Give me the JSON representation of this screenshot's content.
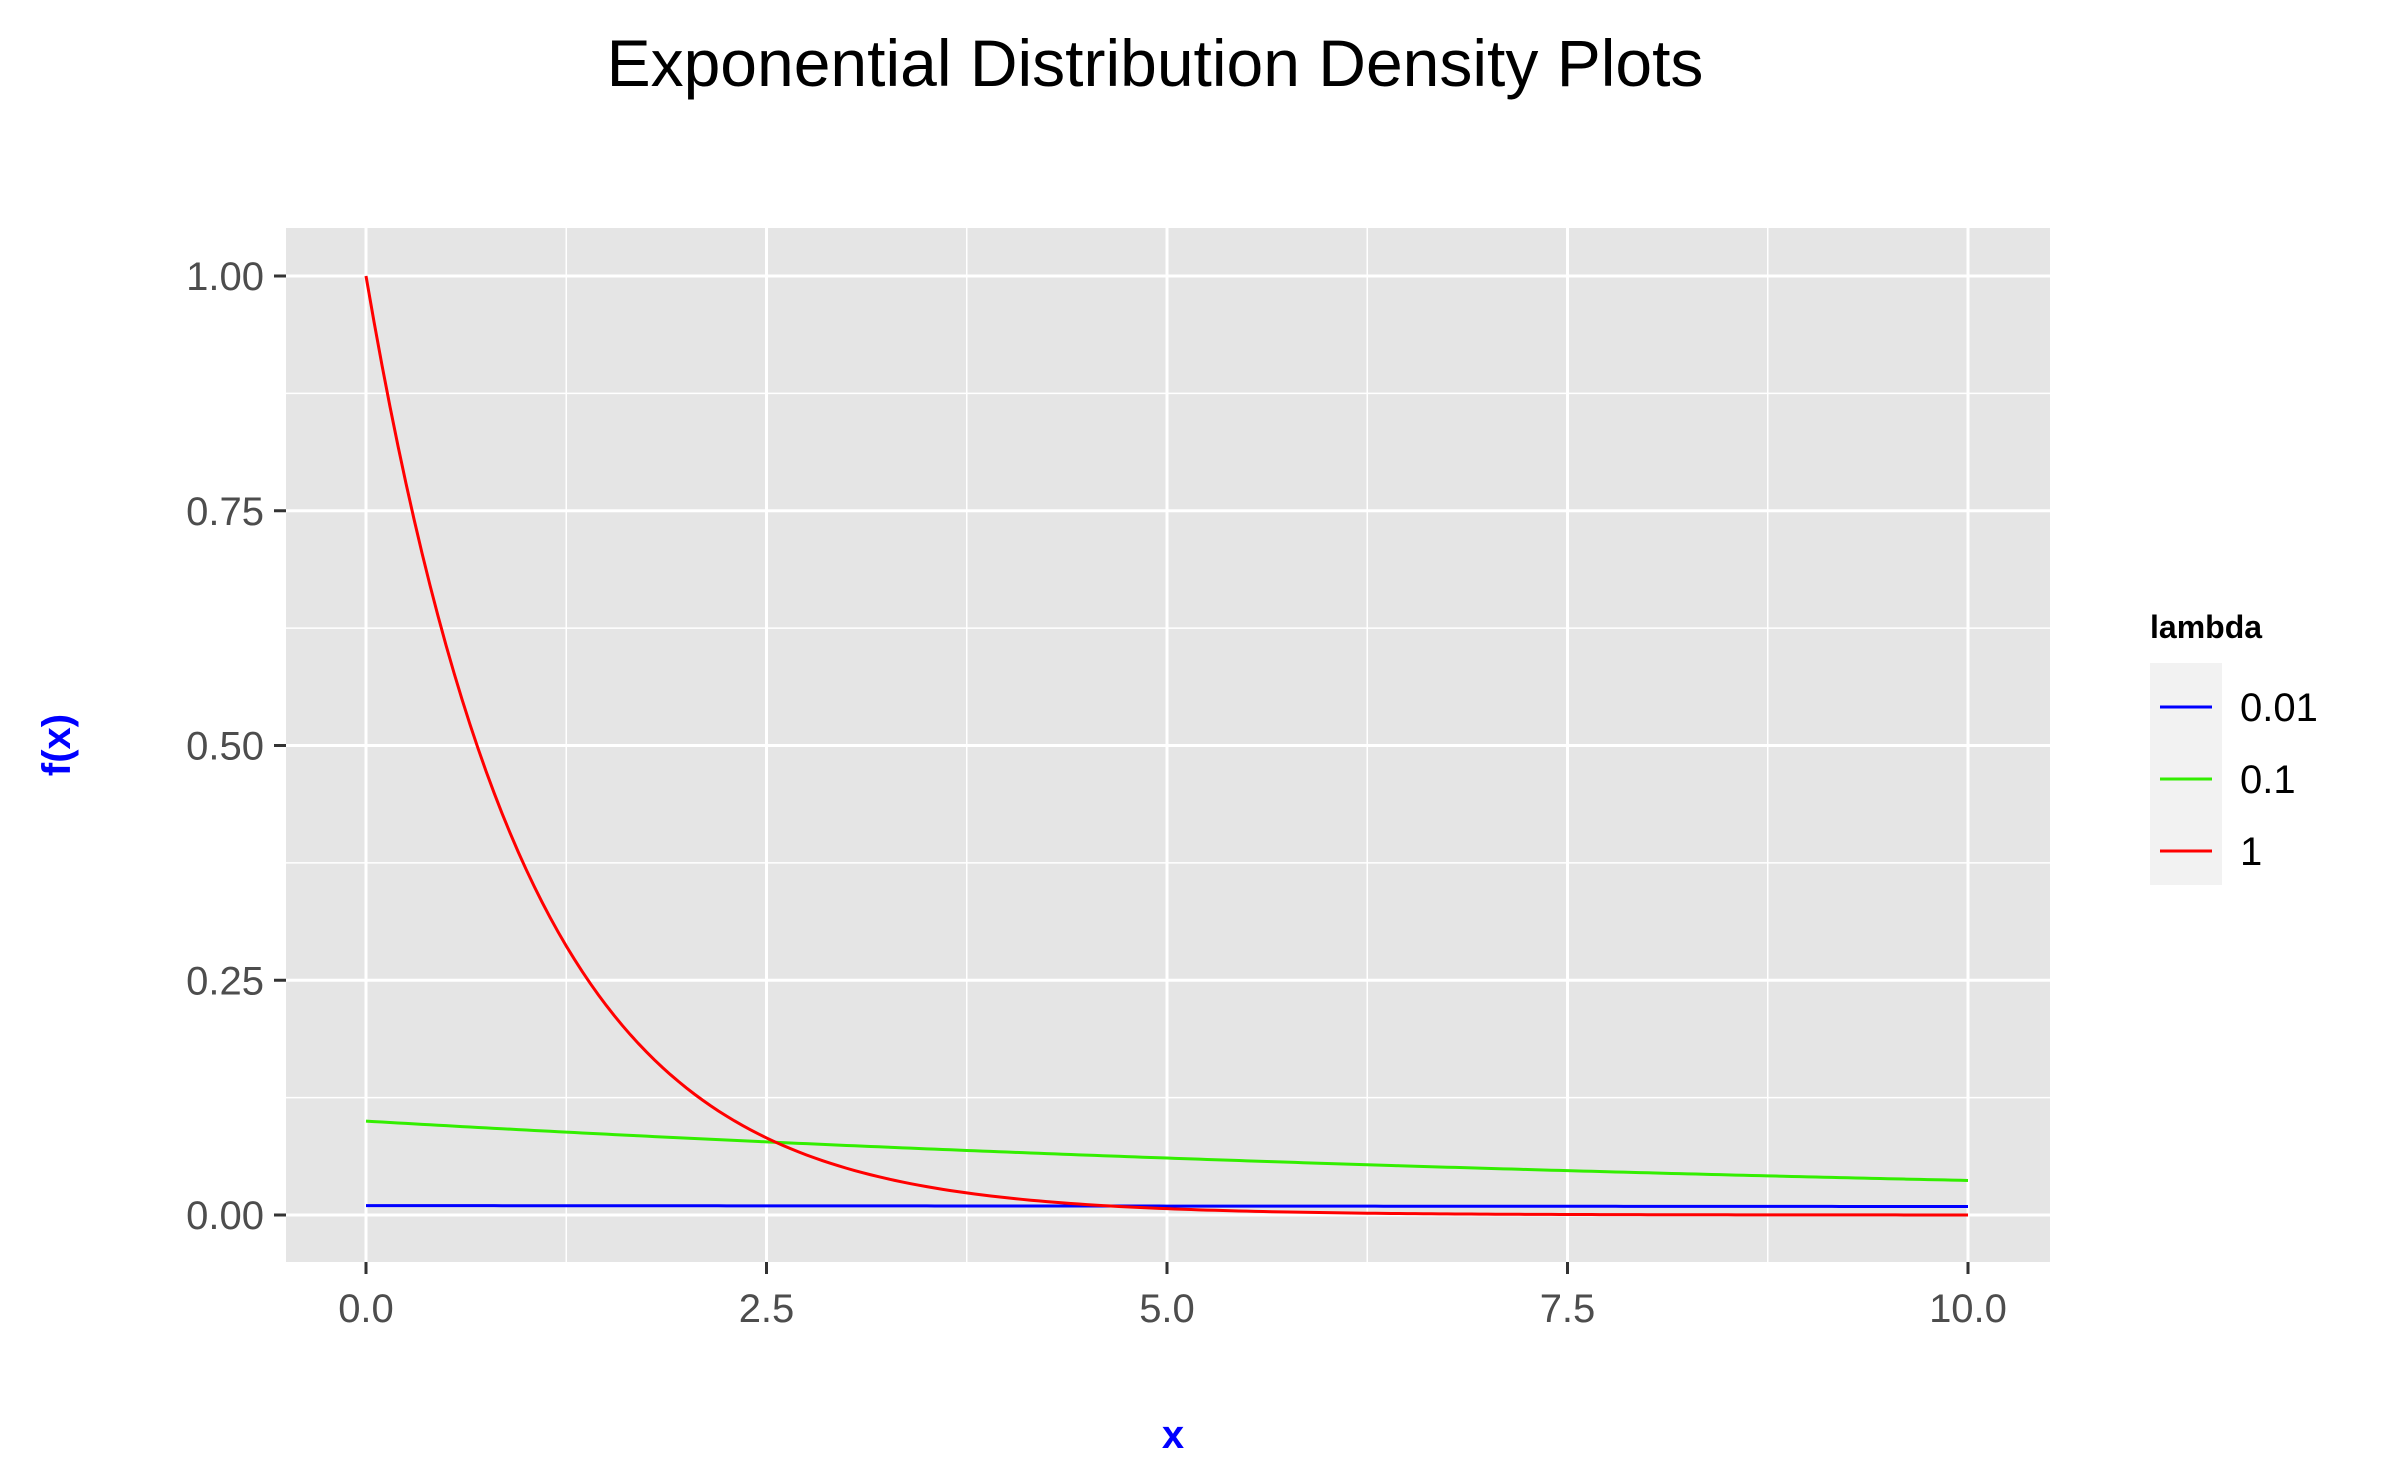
{
  "chart_data": {
    "type": "line",
    "title": "Exponential Distribution Density Plots",
    "xlabel": "x",
    "ylabel": "f(x)",
    "xlim": [
      0,
      10
    ],
    "ylim": [
      0,
      1
    ],
    "x_ticks": [
      "0.0",
      "2.5",
      "5.0",
      "7.5",
      "10.0"
    ],
    "y_ticks": [
      "0.00",
      "0.25",
      "0.50",
      "0.75",
      "1.00"
    ],
    "grid": true,
    "legend": {
      "title": "lambda",
      "position": "right"
    },
    "series": [
      {
        "name": "0.01",
        "lambda": 0.01,
        "color": "#0000ff",
        "x": [
          0,
          1,
          2,
          3,
          4,
          5,
          6,
          7,
          8,
          9,
          10
        ],
        "y": [
          0.01,
          0.0099,
          0.0098,
          0.0097,
          0.0096,
          0.0095,
          0.0094,
          0.0093,
          0.0092,
          0.0091,
          0.009
        ]
      },
      {
        "name": "0.1",
        "lambda": 0.1,
        "color": "#33ee00",
        "x": [
          0,
          1,
          2,
          3,
          4,
          5,
          6,
          7,
          8,
          9,
          10
        ],
        "y": [
          0.1,
          0.09,
          0.082,
          0.074,
          0.067,
          0.061,
          0.055,
          0.05,
          0.045,
          0.041,
          0.037
        ]
      },
      {
        "name": "1",
        "lambda": 1,
        "color": "#ff0000",
        "x": [
          0,
          0.25,
          0.5,
          0.75,
          1,
          1.5,
          2,
          2.5,
          3,
          4,
          5,
          6,
          7,
          8,
          9,
          10
        ],
        "y": [
          1.0,
          0.779,
          0.607,
          0.472,
          0.368,
          0.223,
          0.135,
          0.082,
          0.05,
          0.018,
          0.007,
          0.002,
          0.001,
          0.0,
          0.0,
          0.0
        ]
      }
    ]
  }
}
